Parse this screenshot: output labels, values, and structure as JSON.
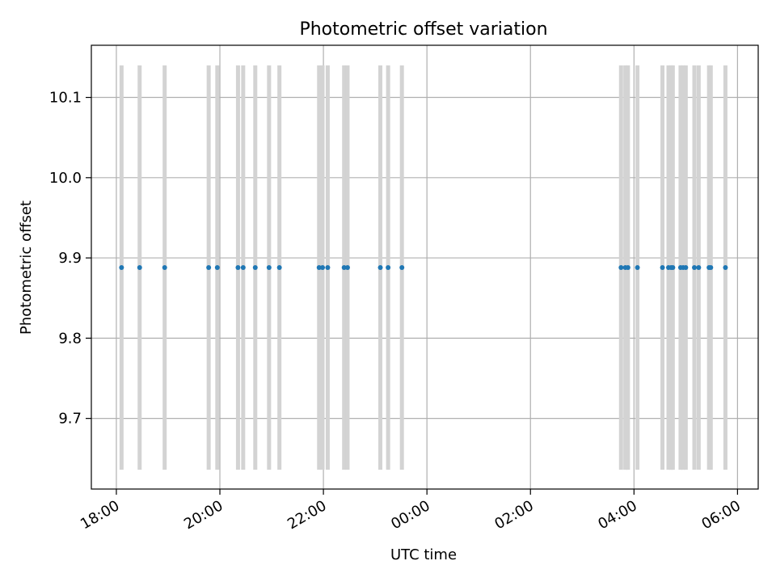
{
  "chart_data": {
    "type": "scatter",
    "title": "Photometric offset variation",
    "xlabel": "UTC time",
    "ylabel": "Photometric offset",
    "x_axis": {
      "kind": "time",
      "range": [
        "17:31",
        "06:24"
      ],
      "ticks": [
        "18:00",
        "20:00",
        "22:00",
        "00:00",
        "02:00",
        "04:00",
        "06:00"
      ],
      "tick_label_rotation_deg": 30
    },
    "y_axis": {
      "range": [
        9.612,
        10.165
      ],
      "ticks": [
        9.7,
        9.8,
        9.9,
        10.0,
        10.1
      ]
    },
    "grid": true,
    "series": [
      {
        "points": [
          {
            "x": "18:06",
            "y": 9.888,
            "err_low": 9.636,
            "err_high": 10.14
          },
          {
            "x": "18:27",
            "y": 9.888,
            "err_low": 9.636,
            "err_high": 10.14
          },
          {
            "x": "18:56",
            "y": 9.888,
            "err_low": 9.636,
            "err_high": 10.14
          },
          {
            "x": "19:47",
            "y": 9.888,
            "err_low": 9.636,
            "err_high": 10.14
          },
          {
            "x": "19:57",
            "y": 9.888,
            "err_low": 9.636,
            "err_high": 10.14
          },
          {
            "x": "20:21",
            "y": 9.888,
            "err_low": 9.636,
            "err_high": 10.14
          },
          {
            "x": "20:27",
            "y": 9.888,
            "err_low": 9.636,
            "err_high": 10.14
          },
          {
            "x": "20:41",
            "y": 9.888,
            "err_low": 9.636,
            "err_high": 10.14
          },
          {
            "x": "20:57",
            "y": 9.888,
            "err_low": 9.636,
            "err_high": 10.14
          },
          {
            "x": "21:09",
            "y": 9.888,
            "err_low": 9.636,
            "err_high": 10.14
          },
          {
            "x": "21:55",
            "y": 9.888,
            "err_low": 9.636,
            "err_high": 10.14
          },
          {
            "x": "21:59",
            "y": 9.888,
            "err_low": 9.636,
            "err_high": 10.14
          },
          {
            "x": "22:05",
            "y": 9.888,
            "err_low": 9.636,
            "err_high": 10.14
          },
          {
            "x": "22:24",
            "y": 9.888,
            "err_low": 9.636,
            "err_high": 10.14
          },
          {
            "x": "22:28",
            "y": 9.888,
            "err_low": 9.636,
            "err_high": 10.14
          },
          {
            "x": "23:06",
            "y": 9.888,
            "err_low": 9.636,
            "err_high": 10.14
          },
          {
            "x": "23:15",
            "y": 9.888,
            "err_low": 9.636,
            "err_high": 10.14
          },
          {
            "x": "23:31",
            "y": 9.888,
            "err_low": 9.636,
            "err_high": 10.14
          },
          {
            "x": "03:45",
            "y": 9.888,
            "err_low": 9.636,
            "err_high": 10.14
          },
          {
            "x": "03:50",
            "y": 9.888,
            "err_low": 9.636,
            "err_high": 10.14
          },
          {
            "x": "03:53",
            "y": 9.888,
            "err_low": 9.636,
            "err_high": 10.14
          },
          {
            "x": "04:04",
            "y": 9.888,
            "err_low": 9.636,
            "err_high": 10.14
          },
          {
            "x": "04:33",
            "y": 9.888,
            "err_low": 9.636,
            "err_high": 10.14
          },
          {
            "x": "04:40",
            "y": 9.888,
            "err_low": 9.636,
            "err_high": 10.14
          },
          {
            "x": "04:43",
            "y": 9.888,
            "err_low": 9.636,
            "err_high": 10.14
          },
          {
            "x": "04:45",
            "y": 9.888,
            "err_low": 9.636,
            "err_high": 10.14
          },
          {
            "x": "04:54",
            "y": 9.888,
            "err_low": 9.636,
            "err_high": 10.14
          },
          {
            "x": "04:57",
            "y": 9.888,
            "err_low": 9.636,
            "err_high": 10.14
          },
          {
            "x": "05:00",
            "y": 9.888,
            "err_low": 9.636,
            "err_high": 10.14
          },
          {
            "x": "05:10",
            "y": 9.888,
            "err_low": 9.636,
            "err_high": 10.14
          },
          {
            "x": "05:15",
            "y": 9.888,
            "err_low": 9.636,
            "err_high": 10.14
          },
          {
            "x": "05:27",
            "y": 9.888,
            "err_low": 9.636,
            "err_high": 10.14
          },
          {
            "x": "05:29",
            "y": 9.888,
            "err_low": 9.636,
            "err_high": 10.14
          },
          {
            "x": "05:46",
            "y": 9.888,
            "err_low": 9.636,
            "err_high": 10.14
          }
        ]
      }
    ],
    "colors": {
      "point": "#1f77b4",
      "errorbar": "#d3d3d3",
      "grid": "#b0b0b0",
      "axes": "#000000"
    }
  }
}
